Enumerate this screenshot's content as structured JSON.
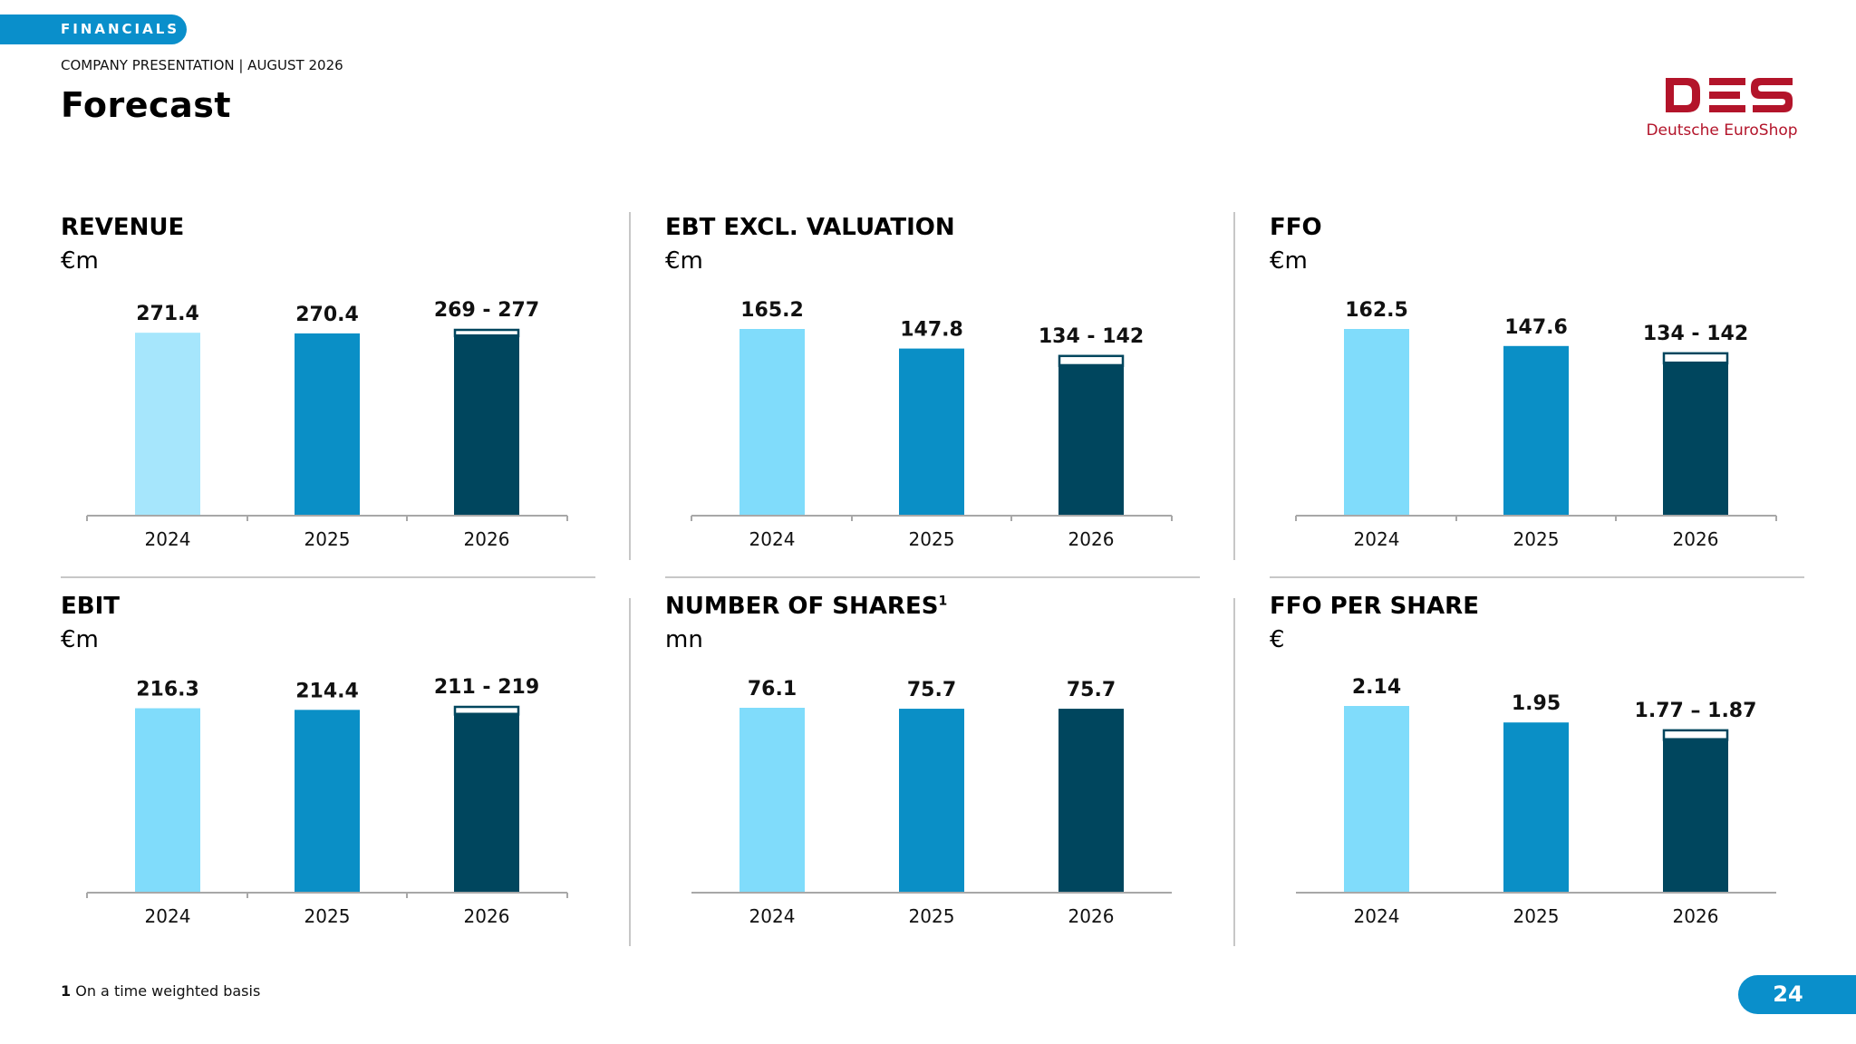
{
  "header": {
    "section_label": "FINANCIALS",
    "subtitle": "COMPANY PRESENTATION | AUGUST 2026",
    "title": "Forecast"
  },
  "logo": {
    "mark": "DES",
    "name": "Deutsche EuroShop",
    "color": "#b3142a"
  },
  "colors": {
    "year_2024": "#80dcfb",
    "year_2025": "#0a8fc6",
    "year_2026": "#00465e",
    "revenue_2024": "#a6e6fc",
    "accent": "#0a8fcb"
  },
  "panels": [
    {
      "title": "REVENUE",
      "unit": "€m"
    },
    {
      "title": "EBT EXCL. VALUATION",
      "unit": "€m"
    },
    {
      "title": "FFO",
      "unit": "€m"
    },
    {
      "title": "EBIT",
      "unit": "€m"
    },
    {
      "title": "NUMBER OF SHARES",
      "title_sup": "1",
      "unit": "mn"
    },
    {
      "title": "FFO PER SHARE",
      "unit": "€"
    }
  ],
  "chart_data": [
    {
      "type": "bar",
      "title": "REVENUE",
      "ylabel": "€m",
      "categories": [
        "2024",
        "2025",
        "2026"
      ],
      "values": [
        271.4,
        270.4,
        277
      ],
      "range_low": [
        null,
        null,
        269
      ],
      "labels": [
        "271.4",
        "270.4",
        "269 - 277"
      ]
    },
    {
      "type": "bar",
      "title": "EBT EXCL. VALUATION",
      "ylabel": "€m",
      "categories": [
        "2024",
        "2025",
        "2026"
      ],
      "values": [
        165.2,
        147.8,
        142
      ],
      "range_low": [
        null,
        null,
        134
      ],
      "labels": [
        "165.2",
        "147.8",
        "134 - 142"
      ]
    },
    {
      "type": "bar",
      "title": "FFO",
      "ylabel": "€m",
      "categories": [
        "2024",
        "2025",
        "2026"
      ],
      "values": [
        162.5,
        147.6,
        142
      ],
      "range_low": [
        null,
        null,
        134
      ],
      "labels": [
        "162.5",
        "147.6",
        "134 - 142"
      ]
    },
    {
      "type": "bar",
      "title": "EBIT",
      "ylabel": "€m",
      "categories": [
        "2024",
        "2025",
        "2026"
      ],
      "values": [
        216.3,
        214.4,
        219
      ],
      "range_low": [
        null,
        null,
        211
      ],
      "labels": [
        "216.3",
        "214.4",
        "211 - 219"
      ]
    },
    {
      "type": "bar",
      "title": "NUMBER OF SHARES",
      "ylabel": "mn",
      "categories": [
        "2024",
        "2025",
        "2026"
      ],
      "values": [
        76.1,
        75.7,
        75.7
      ],
      "range_low": [
        null,
        null,
        null
      ],
      "labels": [
        "76.1",
        "75.7",
        "75.7"
      ]
    },
    {
      "type": "bar",
      "title": "FFO PER SHARE",
      "ylabel": "€",
      "categories": [
        "2024",
        "2025",
        "2026"
      ],
      "values": [
        2.14,
        1.95,
        1.87
      ],
      "range_low": [
        null,
        null,
        1.77
      ],
      "labels": [
        "2.14",
        "1.95",
        "1.77 – 1.87"
      ]
    }
  ],
  "footnote": {
    "marker": "1",
    "text": " On a time weighted basis"
  },
  "page_number": "24"
}
